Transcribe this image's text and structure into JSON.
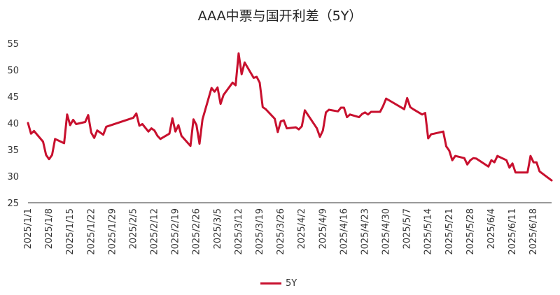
{
  "chart_data": {
    "type": "line",
    "title": "AAA中票与国开利差（5Y）",
    "xlabel": "",
    "ylabel": "",
    "ylim": [
      25,
      55
    ],
    "yticks": [
      25,
      30,
      35,
      40,
      45,
      50,
      55
    ],
    "xtick_labels": [
      "2025/1/1",
      "2025/1/8",
      "2025/1/15",
      "2025/1/22",
      "2025/1/29",
      "2025/2/5",
      "2025/2/12",
      "2025/2/19",
      "2025/2/26",
      "2025/3/5",
      "2025/3/12",
      "2025/3/19",
      "2025/3/26",
      "2025/4/2",
      "2025/4/9",
      "2025/4/16",
      "2025/4/23",
      "2025/4/30",
      "2025/5/7",
      "2025/5/14",
      "2025/5/21",
      "2025/5/28",
      "2025/6/4",
      "2025/6/11",
      "2025/6/18"
    ],
    "grid": false,
    "legend_position": "bottom",
    "series": [
      {
        "name": "5Y",
        "color": "#c8102e",
        "points": [
          [
            "2025/1/1",
            40.0
          ],
          [
            "2025/1/2",
            38.0
          ],
          [
            "2025/1/3",
            38.5
          ],
          [
            "2025/1/6",
            36.5
          ],
          [
            "2025/1/7",
            34.0
          ],
          [
            "2025/1/8",
            33.2
          ],
          [
            "2025/1/9",
            34.0
          ],
          [
            "2025/1/10",
            37.0
          ],
          [
            "2025/1/13",
            36.2
          ],
          [
            "2025/1/14",
            41.6
          ],
          [
            "2025/1/15",
            39.6
          ],
          [
            "2025/1/16",
            40.6
          ],
          [
            "2025/1/17",
            39.8
          ],
          [
            "2025/1/20",
            40.2
          ],
          [
            "2025/1/21",
            41.5
          ],
          [
            "2025/1/22",
            38.2
          ],
          [
            "2025/1/23",
            37.2
          ],
          [
            "2025/1/24",
            38.6
          ],
          [
            "2025/1/26",
            37.8
          ],
          [
            "2025/1/27",
            39.3
          ],
          [
            "2025/2/5",
            41.0
          ],
          [
            "2025/2/6",
            41.8
          ],
          [
            "2025/2/7",
            39.5
          ],
          [
            "2025/2/8",
            39.8
          ],
          [
            "2025/2/10",
            38.4
          ],
          [
            "2025/2/11",
            39.0
          ],
          [
            "2025/2/12",
            38.6
          ],
          [
            "2025/2/13",
            37.6
          ],
          [
            "2025/2/14",
            37.0
          ],
          [
            "2025/2/17",
            38.0
          ],
          [
            "2025/2/18",
            40.9
          ],
          [
            "2025/2/19",
            38.4
          ],
          [
            "2025/2/20",
            39.6
          ],
          [
            "2025/2/21",
            37.6
          ],
          [
            "2025/2/24",
            35.7
          ],
          [
            "2025/2/25",
            40.7
          ],
          [
            "2025/2/26",
            39.6
          ],
          [
            "2025/2/27",
            36.1
          ],
          [
            "2025/2/28",
            40.7
          ],
          [
            "2025/3/3",
            46.6
          ],
          [
            "2025/3/4",
            45.9
          ],
          [
            "2025/3/5",
            46.7
          ],
          [
            "2025/3/6",
            43.6
          ],
          [
            "2025/3/7",
            45.3
          ],
          [
            "2025/3/10",
            47.6
          ],
          [
            "2025/3/11",
            47.1
          ],
          [
            "2025/3/12",
            53.1
          ],
          [
            "2025/3/13",
            49.2
          ],
          [
            "2025/3/14",
            51.4
          ],
          [
            "2025/3/17",
            48.5
          ],
          [
            "2025/3/18",
            48.7
          ],
          [
            "2025/3/19",
            47.6
          ],
          [
            "2025/3/20",
            43.0
          ],
          [
            "2025/3/21",
            42.6
          ],
          [
            "2025/3/24",
            40.8
          ],
          [
            "2025/3/25",
            38.3
          ],
          [
            "2025/3/26",
            40.3
          ],
          [
            "2025/3/27",
            40.5
          ],
          [
            "2025/3/28",
            39.0
          ],
          [
            "2025/3/31",
            39.2
          ],
          [
            "2025/4/1",
            38.8
          ],
          [
            "2025/4/2",
            39.4
          ],
          [
            "2025/4/3",
            42.4
          ],
          [
            "2025/4/7",
            39.0
          ],
          [
            "2025/4/8",
            37.4
          ],
          [
            "2025/4/9",
            38.6
          ],
          [
            "2025/4/10",
            42.0
          ],
          [
            "2025/4/11",
            42.5
          ],
          [
            "2025/4/14",
            42.2
          ],
          [
            "2025/4/15",
            42.9
          ],
          [
            "2025/4/16",
            42.9
          ],
          [
            "2025/4/17",
            41.1
          ],
          [
            "2025/4/18",
            41.6
          ],
          [
            "2025/4/21",
            41.1
          ],
          [
            "2025/4/22",
            41.7
          ],
          [
            "2025/4/23",
            42.0
          ],
          [
            "2025/4/24",
            41.6
          ],
          [
            "2025/4/25",
            42.1
          ],
          [
            "2025/4/28",
            42.1
          ],
          [
            "2025/4/29",
            43.2
          ],
          [
            "2025/4/30",
            44.6
          ],
          [
            "2025/5/6",
            42.6
          ],
          [
            "2025/5/7",
            44.7
          ],
          [
            "2025/5/8",
            43.0
          ],
          [
            "2025/5/9",
            42.6
          ],
          [
            "2025/5/12",
            41.6
          ],
          [
            "2025/5/13",
            41.9
          ],
          [
            "2025/5/14",
            37.1
          ],
          [
            "2025/5/15",
            37.9
          ],
          [
            "2025/5/16",
            38.0
          ],
          [
            "2025/5/19",
            38.4
          ],
          [
            "2025/5/20",
            35.6
          ],
          [
            "2025/5/21",
            34.8
          ],
          [
            "2025/5/22",
            33.0
          ],
          [
            "2025/5/23",
            33.8
          ],
          [
            "2025/5/26",
            33.4
          ],
          [
            "2025/5/27",
            32.2
          ],
          [
            "2025/5/28",
            33.0
          ],
          [
            "2025/5/29",
            33.4
          ],
          [
            "2025/5/30",
            33.3
          ],
          [
            "2025/6/3",
            31.8
          ],
          [
            "2025/6/4",
            33.0
          ],
          [
            "2025/6/5",
            32.6
          ],
          [
            "2025/6/6",
            33.8
          ],
          [
            "2025/6/9",
            33.0
          ],
          [
            "2025/6/10",
            31.6
          ],
          [
            "2025/6/11",
            32.4
          ],
          [
            "2025/6/12",
            30.7
          ],
          [
            "2025/6/16",
            30.7
          ],
          [
            "2025/6/17",
            33.8
          ],
          [
            "2025/6/18",
            32.6
          ],
          [
            "2025/6/19",
            32.6
          ],
          [
            "2025/6/20",
            30.9
          ],
          [
            "2025/6/24",
            29.2
          ]
        ]
      }
    ]
  }
}
